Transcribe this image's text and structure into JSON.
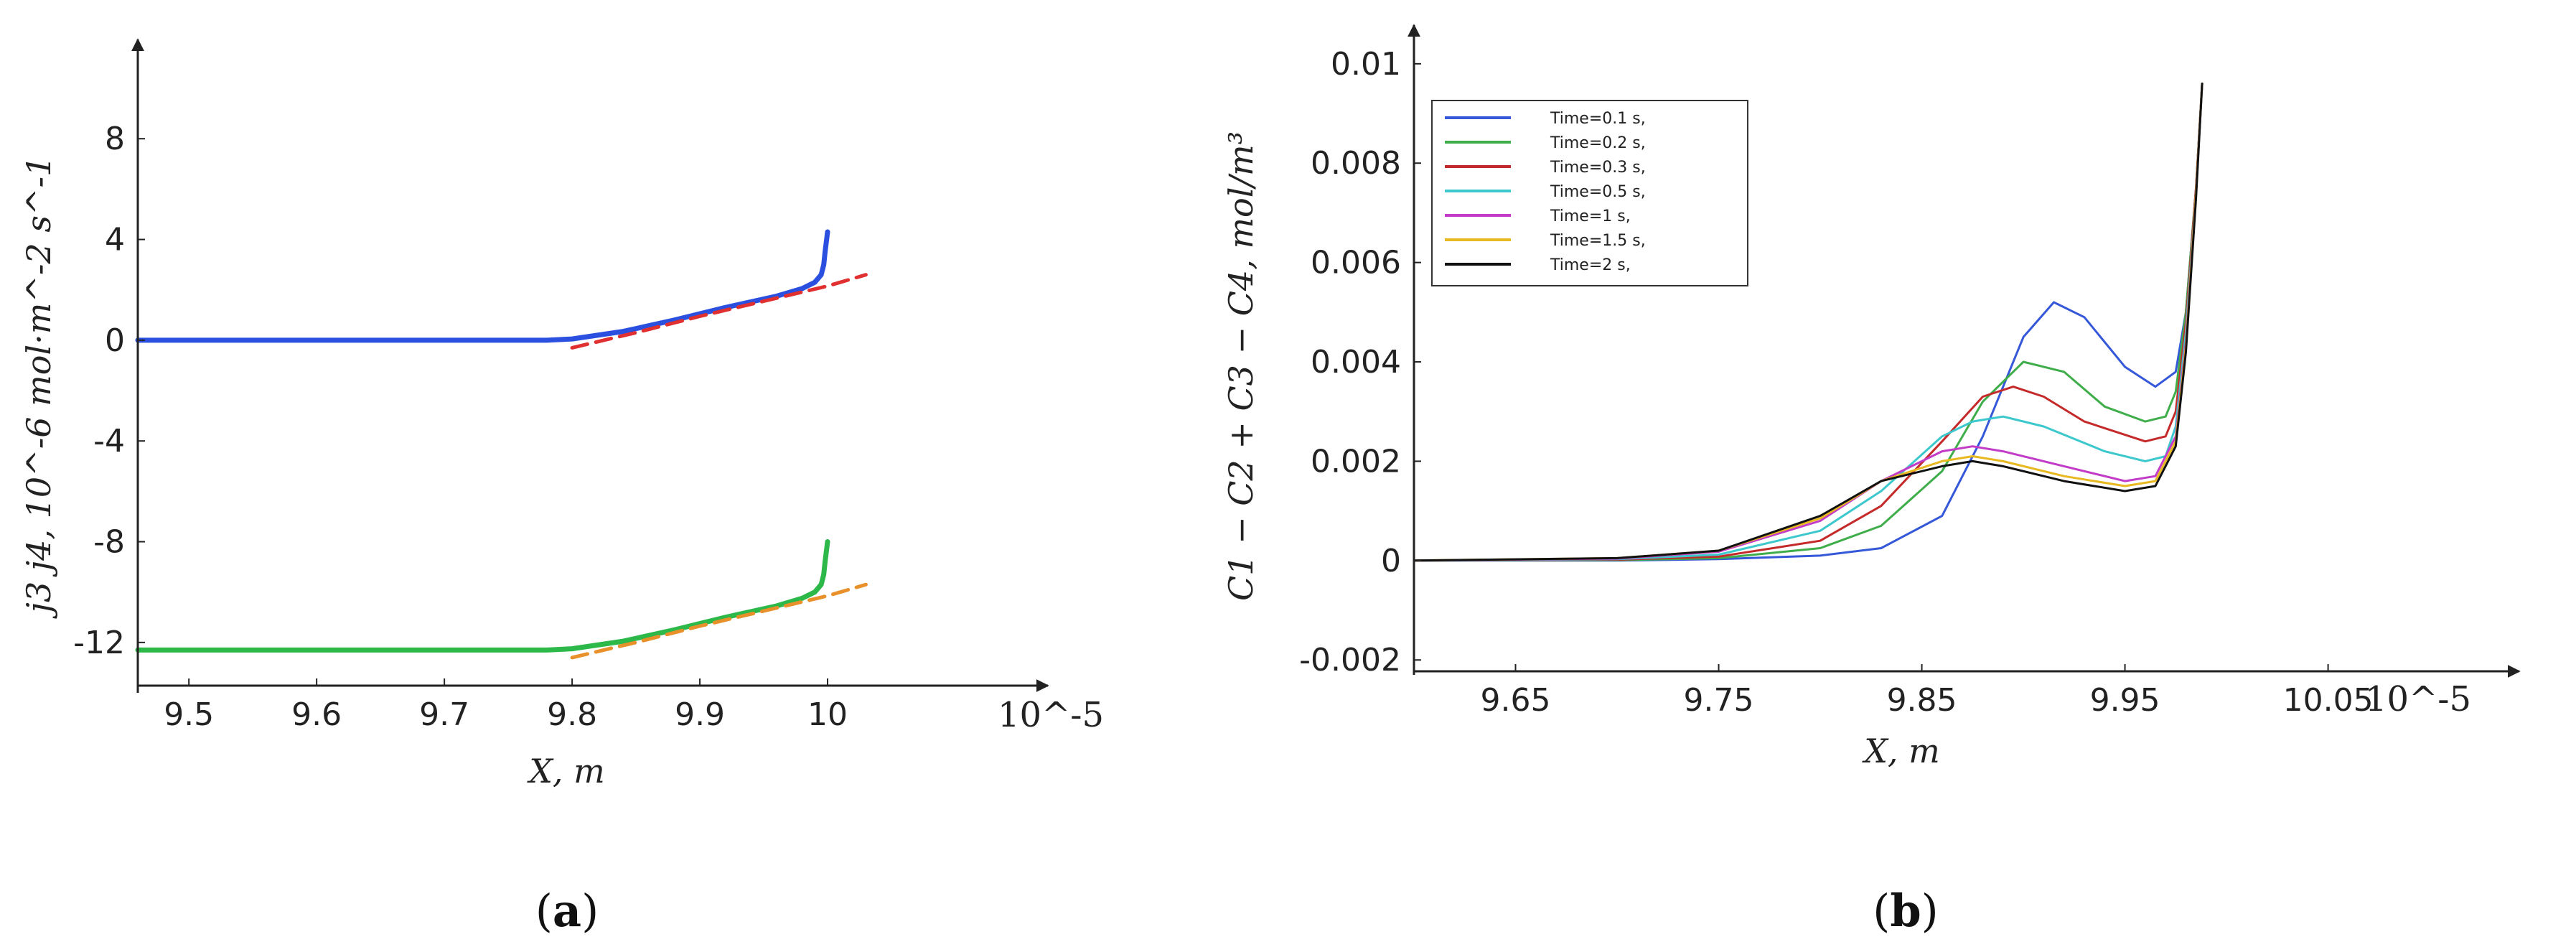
{
  "chart_data": [
    {
      "type": "line",
      "panel_label": "a",
      "xlabel": "X, m",
      "ylabel": "j3 j4, 10^-6 mol·m^-2 s^-1",
      "x_exponent": "10^-5",
      "xlim": [
        9.46,
        10.15
      ],
      "ylim": [
        -14.0,
        10.8
      ],
      "x_ticks": [
        "9.5",
        "9.6",
        "9.7",
        "9.8",
        "9.9",
        "10"
      ],
      "y_ticks": [
        "8",
        "4",
        "0",
        "-4",
        "-8",
        "-12"
      ],
      "series": [
        {
          "color": "#2b50e0",
          "style": "solid",
          "width": 7,
          "x": [
            9.46,
            9.6,
            9.7,
            9.78,
            9.8,
            9.84,
            9.88,
            9.92,
            9.96,
            9.98,
            9.99,
            9.995,
            9.997,
            9.998,
            10.0
          ],
          "y": [
            0.0,
            0.0,
            0.0,
            0.0,
            0.05,
            0.35,
            0.8,
            1.3,
            1.75,
            2.05,
            2.3,
            2.6,
            3.0,
            3.5,
            4.3
          ]
        },
        {
          "color": "#e03030",
          "style": "dashed",
          "width": 5,
          "x": [
            9.8,
            9.85,
            9.9,
            9.95,
            10.0,
            10.03
          ],
          "y": [
            -0.3,
            0.3,
            0.95,
            1.55,
            2.15,
            2.6
          ]
        },
        {
          "color": "#2db84a",
          "style": "solid",
          "width": 7,
          "x": [
            9.46,
            9.6,
            9.7,
            9.78,
            9.8,
            9.84,
            9.88,
            9.92,
            9.96,
            9.98,
            9.99,
            9.995,
            9.997,
            9.998,
            10.0
          ],
          "y": [
            -12.3,
            -12.3,
            -12.3,
            -12.3,
            -12.25,
            -11.95,
            -11.5,
            -11.0,
            -10.55,
            -10.25,
            -10.0,
            -9.7,
            -9.3,
            -8.8,
            -8.0
          ]
        },
        {
          "color": "#e8902a",
          "style": "dashed",
          "width": 5,
          "x": [
            9.8,
            9.85,
            9.9,
            9.95,
            10.0,
            10.03
          ],
          "y": [
            -12.6,
            -12.0,
            -11.35,
            -10.75,
            -10.15,
            -9.7
          ]
        }
      ]
    },
    {
      "type": "line",
      "panel_label": "b",
      "xlabel": "X, m",
      "ylabel": "C1 − C2 + C3 − C4, mol/m³",
      "x_exponent": "10^-5",
      "xlim": [
        9.6,
        10.13
      ],
      "ylim": [
        -0.0023,
        0.0102
      ],
      "x_ticks": [
        "9.65",
        "9.75",
        "9.85",
        "9.95",
        "10.05"
      ],
      "y_ticks": [
        "0.01",
        "0.008",
        "0.006",
        "0.004",
        "0.002",
        "0",
        "-0.002"
      ],
      "legend": {
        "placement": "top-left",
        "frame": true
      },
      "series": [
        {
          "name": "Time=0.1 s,",
          "color": "#3558d8",
          "x": [
            9.6,
            9.7,
            9.75,
            9.8,
            9.83,
            9.86,
            9.88,
            9.9,
            9.915,
            9.93,
            9.95,
            9.965,
            9.975,
            9.98,
            9.985,
            9.988
          ],
          "y": [
            0.0,
            0.0,
            3e-05,
            0.0001,
            0.00025,
            0.0009,
            0.0025,
            0.0045,
            0.0052,
            0.0049,
            0.0039,
            0.0035,
            0.0038,
            0.005,
            0.0075,
            0.0096
          ]
        },
        {
          "name": "Time=0.2 s,",
          "color": "#3fae4a",
          "x": [
            9.6,
            9.7,
            9.75,
            9.8,
            9.83,
            9.86,
            9.88,
            9.9,
            9.92,
            9.94,
            9.96,
            9.97,
            9.975,
            9.98,
            9.985,
            9.988
          ],
          "y": [
            0.0,
            1e-05,
            5e-05,
            0.00025,
            0.0007,
            0.0018,
            0.0032,
            0.004,
            0.0038,
            0.0031,
            0.0028,
            0.0029,
            0.0034,
            0.005,
            0.0075,
            0.0096
          ]
        },
        {
          "name": "Time=0.3 s,",
          "color": "#c42a2a",
          "x": [
            9.6,
            9.7,
            9.75,
            9.8,
            9.83,
            9.86,
            9.88,
            9.895,
            9.91,
            9.93,
            9.96,
            9.97,
            9.975,
            9.98,
            9.985,
            9.988
          ],
          "y": [
            0.0,
            2e-05,
            8e-05,
            0.0004,
            0.0011,
            0.0024,
            0.0033,
            0.0035,
            0.0033,
            0.0028,
            0.0024,
            0.0025,
            0.003,
            0.0048,
            0.0075,
            0.0096
          ]
        },
        {
          "name": "Time=0.5 s,",
          "color": "#3cc8cc",
          "x": [
            9.6,
            9.7,
            9.75,
            9.8,
            9.83,
            9.86,
            9.875,
            9.89,
            9.91,
            9.94,
            9.96,
            9.97,
            9.975,
            9.98,
            9.985,
            9.988
          ],
          "y": [
            0.0,
            3e-05,
            0.00012,
            0.0006,
            0.0014,
            0.0025,
            0.0028,
            0.0029,
            0.0027,
            0.0022,
            0.002,
            0.0021,
            0.0027,
            0.0046,
            0.0074,
            0.0096
          ]
        },
        {
          "name": "Time=1 s,",
          "color": "#c23cc8",
          "x": [
            9.6,
            9.7,
            9.75,
            9.8,
            9.83,
            9.86,
            9.875,
            9.89,
            9.92,
            9.95,
            9.965,
            9.975,
            9.98,
            9.985,
            9.988
          ],
          "y": [
            0.0,
            4e-05,
            0.00018,
            0.0008,
            0.0016,
            0.0022,
            0.0023,
            0.0022,
            0.0019,
            0.0016,
            0.0017,
            0.0025,
            0.0044,
            0.0074,
            0.0096
          ]
        },
        {
          "name": "Time=1.5 s,",
          "color": "#e8b820",
          "x": [
            9.6,
            9.7,
            9.75,
            9.8,
            9.83,
            9.86,
            9.875,
            9.89,
            9.92,
            9.95,
            9.965,
            9.975,
            9.98,
            9.985,
            9.988
          ],
          "y": [
            0.0,
            5e-05,
            0.0002,
            0.00085,
            0.0016,
            0.002,
            0.0021,
            0.002,
            0.0017,
            0.0015,
            0.0016,
            0.0024,
            0.0043,
            0.0074,
            0.0096
          ]
        },
        {
          "name": "Time=2 s,",
          "color": "#111111",
          "x": [
            9.6,
            9.7,
            9.75,
            9.8,
            9.83,
            9.86,
            9.875,
            9.89,
            9.92,
            9.95,
            9.965,
            9.975,
            9.98,
            9.985,
            9.988
          ],
          "y": [
            0.0,
            5e-05,
            0.0002,
            0.0009,
            0.0016,
            0.0019,
            0.002,
            0.0019,
            0.0016,
            0.0014,
            0.0015,
            0.0023,
            0.0042,
            0.0073,
            0.0096
          ]
        }
      ]
    }
  ]
}
